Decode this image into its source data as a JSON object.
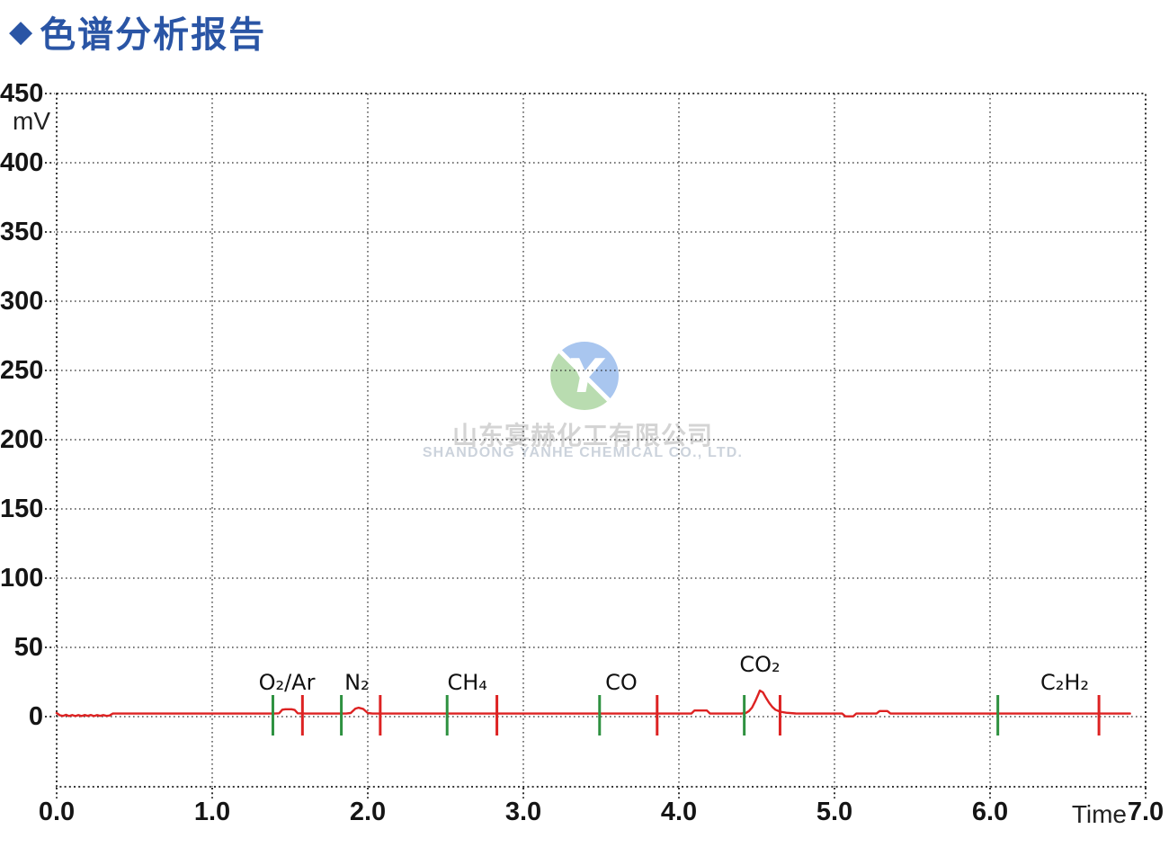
{
  "header": {
    "diamond": "◆",
    "title": "色谱分析报告"
  },
  "watermark": {
    "logo_letter": "Y",
    "company_cn": "山东宴赫化工有限公司",
    "company_en": "SHANDONG YANHE CHEMICAL CO., LTD.",
    "logo_blue": "#a9c6ef",
    "logo_green": "#b9dcb0"
  },
  "chart_data": {
    "type": "line",
    "title": "色谱分析报告",
    "xlabel": "Time",
    "ylabel": "mV",
    "xlim": [
      0,
      7
    ],
    "ylim": [
      -50,
      450
    ],
    "x_ticks": [
      "0.0",
      "1.0",
      "2.0",
      "3.0",
      "4.0",
      "5.0",
      "6.0",
      "7.0"
    ],
    "y_ticks": [
      450,
      400,
      350,
      300,
      250,
      200,
      150,
      100,
      50,
      0
    ],
    "grid": "dotted",
    "legend": "none",
    "baseline_mV": 2.2,
    "trace_color": "#dd2222",
    "peak_start_marker_color": "#2e9140",
    "peak_end_marker_color": "#dd2222",
    "peaks": [
      {
        "label": "O₂/Ar",
        "start_time": 1.39,
        "end_time": 1.58,
        "retention_time": 1.48,
        "apex_mV": 5
      },
      {
        "label": "N₂",
        "start_time": 1.83,
        "end_time": 2.08,
        "retention_time": 1.93,
        "apex_mV": 6
      },
      {
        "label": "CH₄",
        "start_time": 2.51,
        "end_time": 2.83,
        "retention_time": 2.64,
        "apex_mV": 2
      },
      {
        "label": "CO",
        "start_time": 3.49,
        "end_time": 3.86,
        "retention_time": 3.63,
        "apex_mV": 2
      },
      {
        "label": "CO₂",
        "start_time": 4.42,
        "end_time": 4.65,
        "retention_time": 4.52,
        "apex_mV": 19
      },
      {
        "label": "C₂H₂",
        "start_time": 6.05,
        "end_time": 6.7,
        "retention_time": 6.48,
        "apex_mV": 2
      }
    ],
    "trace_points": [
      [
        0.0,
        2.6
      ],
      [
        0.02,
        1.0
      ],
      [
        0.04,
        0.5
      ],
      [
        0.06,
        1.3
      ],
      [
        0.08,
        0.4
      ],
      [
        0.1,
        1.2
      ],
      [
        0.12,
        0.4
      ],
      [
        0.14,
        1.1
      ],
      [
        0.16,
        0.4
      ],
      [
        0.18,
        1.2
      ],
      [
        0.2,
        0.5
      ],
      [
        0.22,
        1.2
      ],
      [
        0.24,
        0.4
      ],
      [
        0.26,
        1.1
      ],
      [
        0.28,
        0.5
      ],
      [
        0.3,
        1.1
      ],
      [
        0.32,
        0.5
      ],
      [
        0.34,
        0.8
      ],
      [
        0.36,
        2.2
      ],
      [
        1.4,
        2.2
      ],
      [
        1.43,
        2.4
      ],
      [
        1.45,
        5.0
      ],
      [
        1.47,
        5.3
      ],
      [
        1.51,
        5.3
      ],
      [
        1.53,
        4.8
      ],
      [
        1.55,
        2.4
      ],
      [
        1.6,
        2.2
      ],
      [
        1.86,
        2.2
      ],
      [
        1.89,
        2.6
      ],
      [
        1.92,
        5.8
      ],
      [
        1.94,
        6.4
      ],
      [
        1.97,
        5.6
      ],
      [
        2.0,
        2.6
      ],
      [
        2.03,
        2.2
      ],
      [
        4.08,
        2.2
      ],
      [
        4.1,
        4.4
      ],
      [
        4.18,
        4.4
      ],
      [
        4.2,
        2.2
      ],
      [
        4.4,
        2.2
      ],
      [
        4.43,
        2.6
      ],
      [
        4.45,
        4.0
      ],
      [
        4.47,
        6.5
      ],
      [
        4.49,
        11.0
      ],
      [
        4.51,
        16.0
      ],
      [
        4.52,
        18.8
      ],
      [
        4.54,
        17.5
      ],
      [
        4.56,
        13.5
      ],
      [
        4.58,
        10.0
      ],
      [
        4.6,
        7.0
      ],
      [
        4.62,
        5.0
      ],
      [
        4.65,
        3.6
      ],
      [
        4.69,
        2.8
      ],
      [
        4.75,
        2.3
      ],
      [
        4.8,
        2.2
      ],
      [
        5.05,
        2.2
      ],
      [
        5.07,
        0.2
      ],
      [
        5.12,
        0.2
      ],
      [
        5.14,
        2.2
      ],
      [
        5.27,
        2.2
      ],
      [
        5.29,
        4.0
      ],
      [
        5.34,
        4.0
      ],
      [
        5.36,
        2.2
      ],
      [
        6.9,
        2.2
      ]
    ]
  }
}
